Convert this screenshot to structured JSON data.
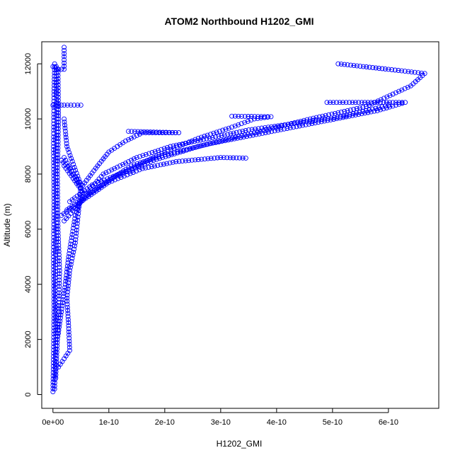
{
  "chart_data": {
    "type": "scatter",
    "title": "ATOM2 Northbound H1202_GMI",
    "xlabel": "H1202_GMI",
    "ylabel": "Altitude (m)",
    "xlim": [
      -2e-11,
      6.9e-10
    ],
    "ylim": [
      -500,
      12800
    ],
    "xticks": [
      0,
      1e-10,
      2e-10,
      3e-10,
      4e-10,
      5e-10,
      6e-10
    ],
    "xtick_labels": [
      "0e+00",
      "1e-10",
      "2e-10",
      "3e-10",
      "4e-10",
      "5e-10",
      "6e-10"
    ],
    "yticks": [
      0,
      2000,
      4000,
      6000,
      8000,
      10000,
      12000
    ],
    "ytick_labels": [
      "0",
      "2000",
      "4000",
      "6000",
      "8000",
      "10000",
      "12000"
    ],
    "grid": false,
    "marker": "open-circle",
    "color": "#0000ff",
    "profiles": [
      [
        [
          0,
          100
        ],
        [
          1e-12,
          1500
        ],
        [
          2e-12,
          3000
        ],
        [
          1e-12,
          5000
        ],
        [
          2e-12,
          7000
        ],
        [
          1e-12,
          9000
        ],
        [
          2e-12,
          11000
        ],
        [
          3e-12,
          12000
        ]
      ],
      [
        [
          3e-12,
          200
        ],
        [
          5e-12,
          2000
        ],
        [
          4e-12,
          4000
        ],
        [
          6e-12,
          6000
        ],
        [
          5e-12,
          8000
        ],
        [
          7e-12,
          10000
        ],
        [
          6e-12,
          11900
        ]
      ],
      [
        [
          5e-12,
          600
        ],
        [
          8e-12,
          2000
        ],
        [
          1e-11,
          3000
        ],
        [
          1.2e-11,
          4500
        ],
        [
          9e-12,
          6000
        ],
        [
          8e-12,
          8000
        ],
        [
          1e-11,
          10000
        ],
        [
          9e-12,
          11800
        ]
      ],
      [
        [
          1e-11,
          1000
        ],
        [
          2e-11,
          1300
        ],
        [
          3e-11,
          1600
        ],
        [
          2.8e-11,
          2500
        ],
        [
          2.5e-11,
          3500
        ],
        [
          3e-11,
          4500
        ],
        [
          4e-11,
          5500
        ],
        [
          5e-11,
          7500
        ],
        [
          2e-11,
          8600
        ]
      ],
      [
        [
          8e-12,
          2000
        ],
        [
          1.5e-11,
          3000
        ],
        [
          2.2e-11,
          4000
        ],
        [
          2.8e-11,
          5000
        ],
        [
          4e-11,
          6500
        ],
        [
          5.5e-11,
          7300
        ],
        [
          2e-11,
          8300
        ]
      ],
      [
        [
          1.5e-11,
          6500
        ],
        [
          5e-11,
          7000
        ],
        [
          1e-10,
          7700
        ],
        [
          1.6e-10,
          8200
        ],
        [
          2.2e-10,
          8450
        ],
        [
          3e-10,
          8600
        ],
        [
          3.45e-10,
          8580
        ]
      ],
      [
        [
          2e-11,
          6300
        ],
        [
          6e-11,
          7200
        ],
        [
          1.1e-10,
          7900
        ],
        [
          1.8e-10,
          8500
        ],
        [
          2.6e-10,
          9000
        ],
        [
          3.6e-10,
          9500
        ],
        [
          4.6e-10,
          10000
        ],
        [
          5.6e-10,
          10450
        ],
        [
          6.4e-10,
          11200
        ],
        [
          6.65e-10,
          11650
        ],
        [
          6e-10,
          11800
        ],
        [
          5.1e-10,
          12000
        ]
      ],
      [
        [
          2.5e-11,
          6700
        ],
        [
          8e-11,
          7500
        ],
        [
          1.4e-10,
          8300
        ],
        [
          2e-10,
          8700
        ],
        [
          2.8e-10,
          9100
        ],
        [
          3.8e-10,
          9500
        ],
        [
          4.8e-10,
          9900
        ],
        [
          5.8e-10,
          10300
        ],
        [
          6.3e-10,
          10600
        ],
        [
          5.3e-10,
          10600
        ],
        [
          4.9e-10,
          10600
        ]
      ],
      [
        [
          3e-11,
          7000
        ],
        [
          7e-11,
          7600
        ],
        [
          1.3e-10,
          8100
        ],
        [
          2e-10,
          8800
        ],
        [
          2.6e-10,
          9300
        ],
        [
          3.2e-10,
          9700
        ],
        [
          3.6e-10,
          10000
        ],
        [
          3.9e-10,
          10080
        ],
        [
          3.2e-10,
          10100
        ]
      ],
      [
        [
          5e-11,
          7500
        ],
        [
          8e-11,
          8300
        ],
        [
          1e-10,
          8800
        ],
        [
          1.3e-10,
          9200
        ],
        [
          1.6e-10,
          9500
        ],
        [
          2.25e-10,
          9500
        ],
        [
          1.35e-10,
          9550
        ]
      ],
      [
        [
          6e-11,
          7300
        ],
        [
          9e-11,
          8000
        ],
        [
          1.5e-10,
          8600
        ],
        [
          2.1e-10,
          9000
        ],
        [
          2.8e-10,
          9300
        ],
        [
          3.5e-10,
          9600
        ],
        [
          4.2e-10,
          9800
        ],
        [
          5.2e-10,
          10100
        ],
        [
          6e-10,
          10500
        ]
      ],
      [
        [
          0,
          10500
        ],
        [
          2e-11,
          10500
        ],
        [
          5e-11,
          10500
        ]
      ],
      [
        [
          0,
          11900
        ],
        [
          1e-11,
          11800
        ],
        [
          2e-11,
          11800
        ],
        [
          2e-11,
          12600
        ]
      ],
      [
        [
          1.5e-11,
          8500
        ],
        [
          3e-11,
          8200
        ],
        [
          5e-11,
          7600
        ],
        [
          2.5e-11,
          9000
        ],
        [
          2e-11,
          10000
        ]
      ]
    ]
  }
}
